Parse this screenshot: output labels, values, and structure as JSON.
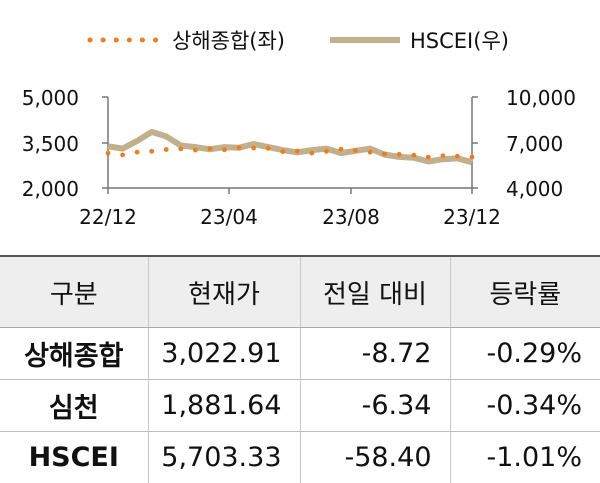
{
  "chart_data": {
    "type": "line",
    "x_ticks": [
      "22/12",
      "23/04",
      "23/08",
      "23/12"
    ],
    "left_axis": {
      "ticks": [
        "5,000",
        "3,500",
        "2,000"
      ],
      "range": [
        2000,
        5000
      ]
    },
    "right_axis": {
      "ticks": [
        "10,000",
        "7,000",
        "4,000"
      ],
      "range": [
        4000,
        10000
      ]
    },
    "grid": false,
    "legend_position": "top",
    "series": [
      {
        "name": "상해종합(좌)",
        "axis": "left",
        "style": "dotted",
        "color": "#ee7d22",
        "x": [
          "22/12",
          "22/12",
          "23/01",
          "23/01",
          "23/01",
          "23/02",
          "23/02",
          "23/03",
          "23/03",
          "23/04",
          "23/04",
          "23/05",
          "23/05",
          "23/06",
          "23/06",
          "23/07",
          "23/07",
          "23/08",
          "23/08",
          "23/09",
          "23/09",
          "23/10",
          "23/10",
          "23/11",
          "23/11",
          "23/12"
        ],
        "values": [
          3150,
          3090,
          3180,
          3210,
          3270,
          3290,
          3250,
          3300,
          3260,
          3330,
          3320,
          3310,
          3200,
          3220,
          3150,
          3210,
          3280,
          3240,
          3180,
          3120,
          3110,
          3080,
          3020,
          3060,
          3050,
          3023
        ]
      },
      {
        "name": "HSCEI(우)",
        "axis": "right",
        "style": "solid",
        "color": "#c2b08c",
        "x": [
          "22/12",
          "22/12",
          "23/01",
          "23/01",
          "23/01",
          "23/02",
          "23/02",
          "23/03",
          "23/03",
          "23/04",
          "23/04",
          "23/05",
          "23/05",
          "23/06",
          "23/06",
          "23/07",
          "23/07",
          "23/08",
          "23/08",
          "23/09",
          "23/09",
          "23/10",
          "23/10",
          "23/11",
          "23/11",
          "23/12"
        ],
        "values": [
          6750,
          6600,
          7100,
          7700,
          7400,
          6800,
          6700,
          6550,
          6700,
          6650,
          6900,
          6700,
          6500,
          6350,
          6500,
          6600,
          6300,
          6450,
          6600,
          6200,
          6050,
          6000,
          5750,
          5900,
          5950,
          5703
        ]
      }
    ]
  },
  "table": {
    "headers": [
      "구분",
      "현재가",
      "전일 대비",
      "등락률"
    ],
    "rows": [
      {
        "name": "상해종합",
        "price": "3,022.91",
        "change": "-8.72",
        "rate": "-0.29%"
      },
      {
        "name": "심천",
        "price": "1,881.64",
        "change": "-6.34",
        "rate": "-0.34%"
      },
      {
        "name": "HSCEI",
        "price": "5,703.33",
        "change": "-58.40",
        "rate": "-1.01%"
      }
    ]
  }
}
